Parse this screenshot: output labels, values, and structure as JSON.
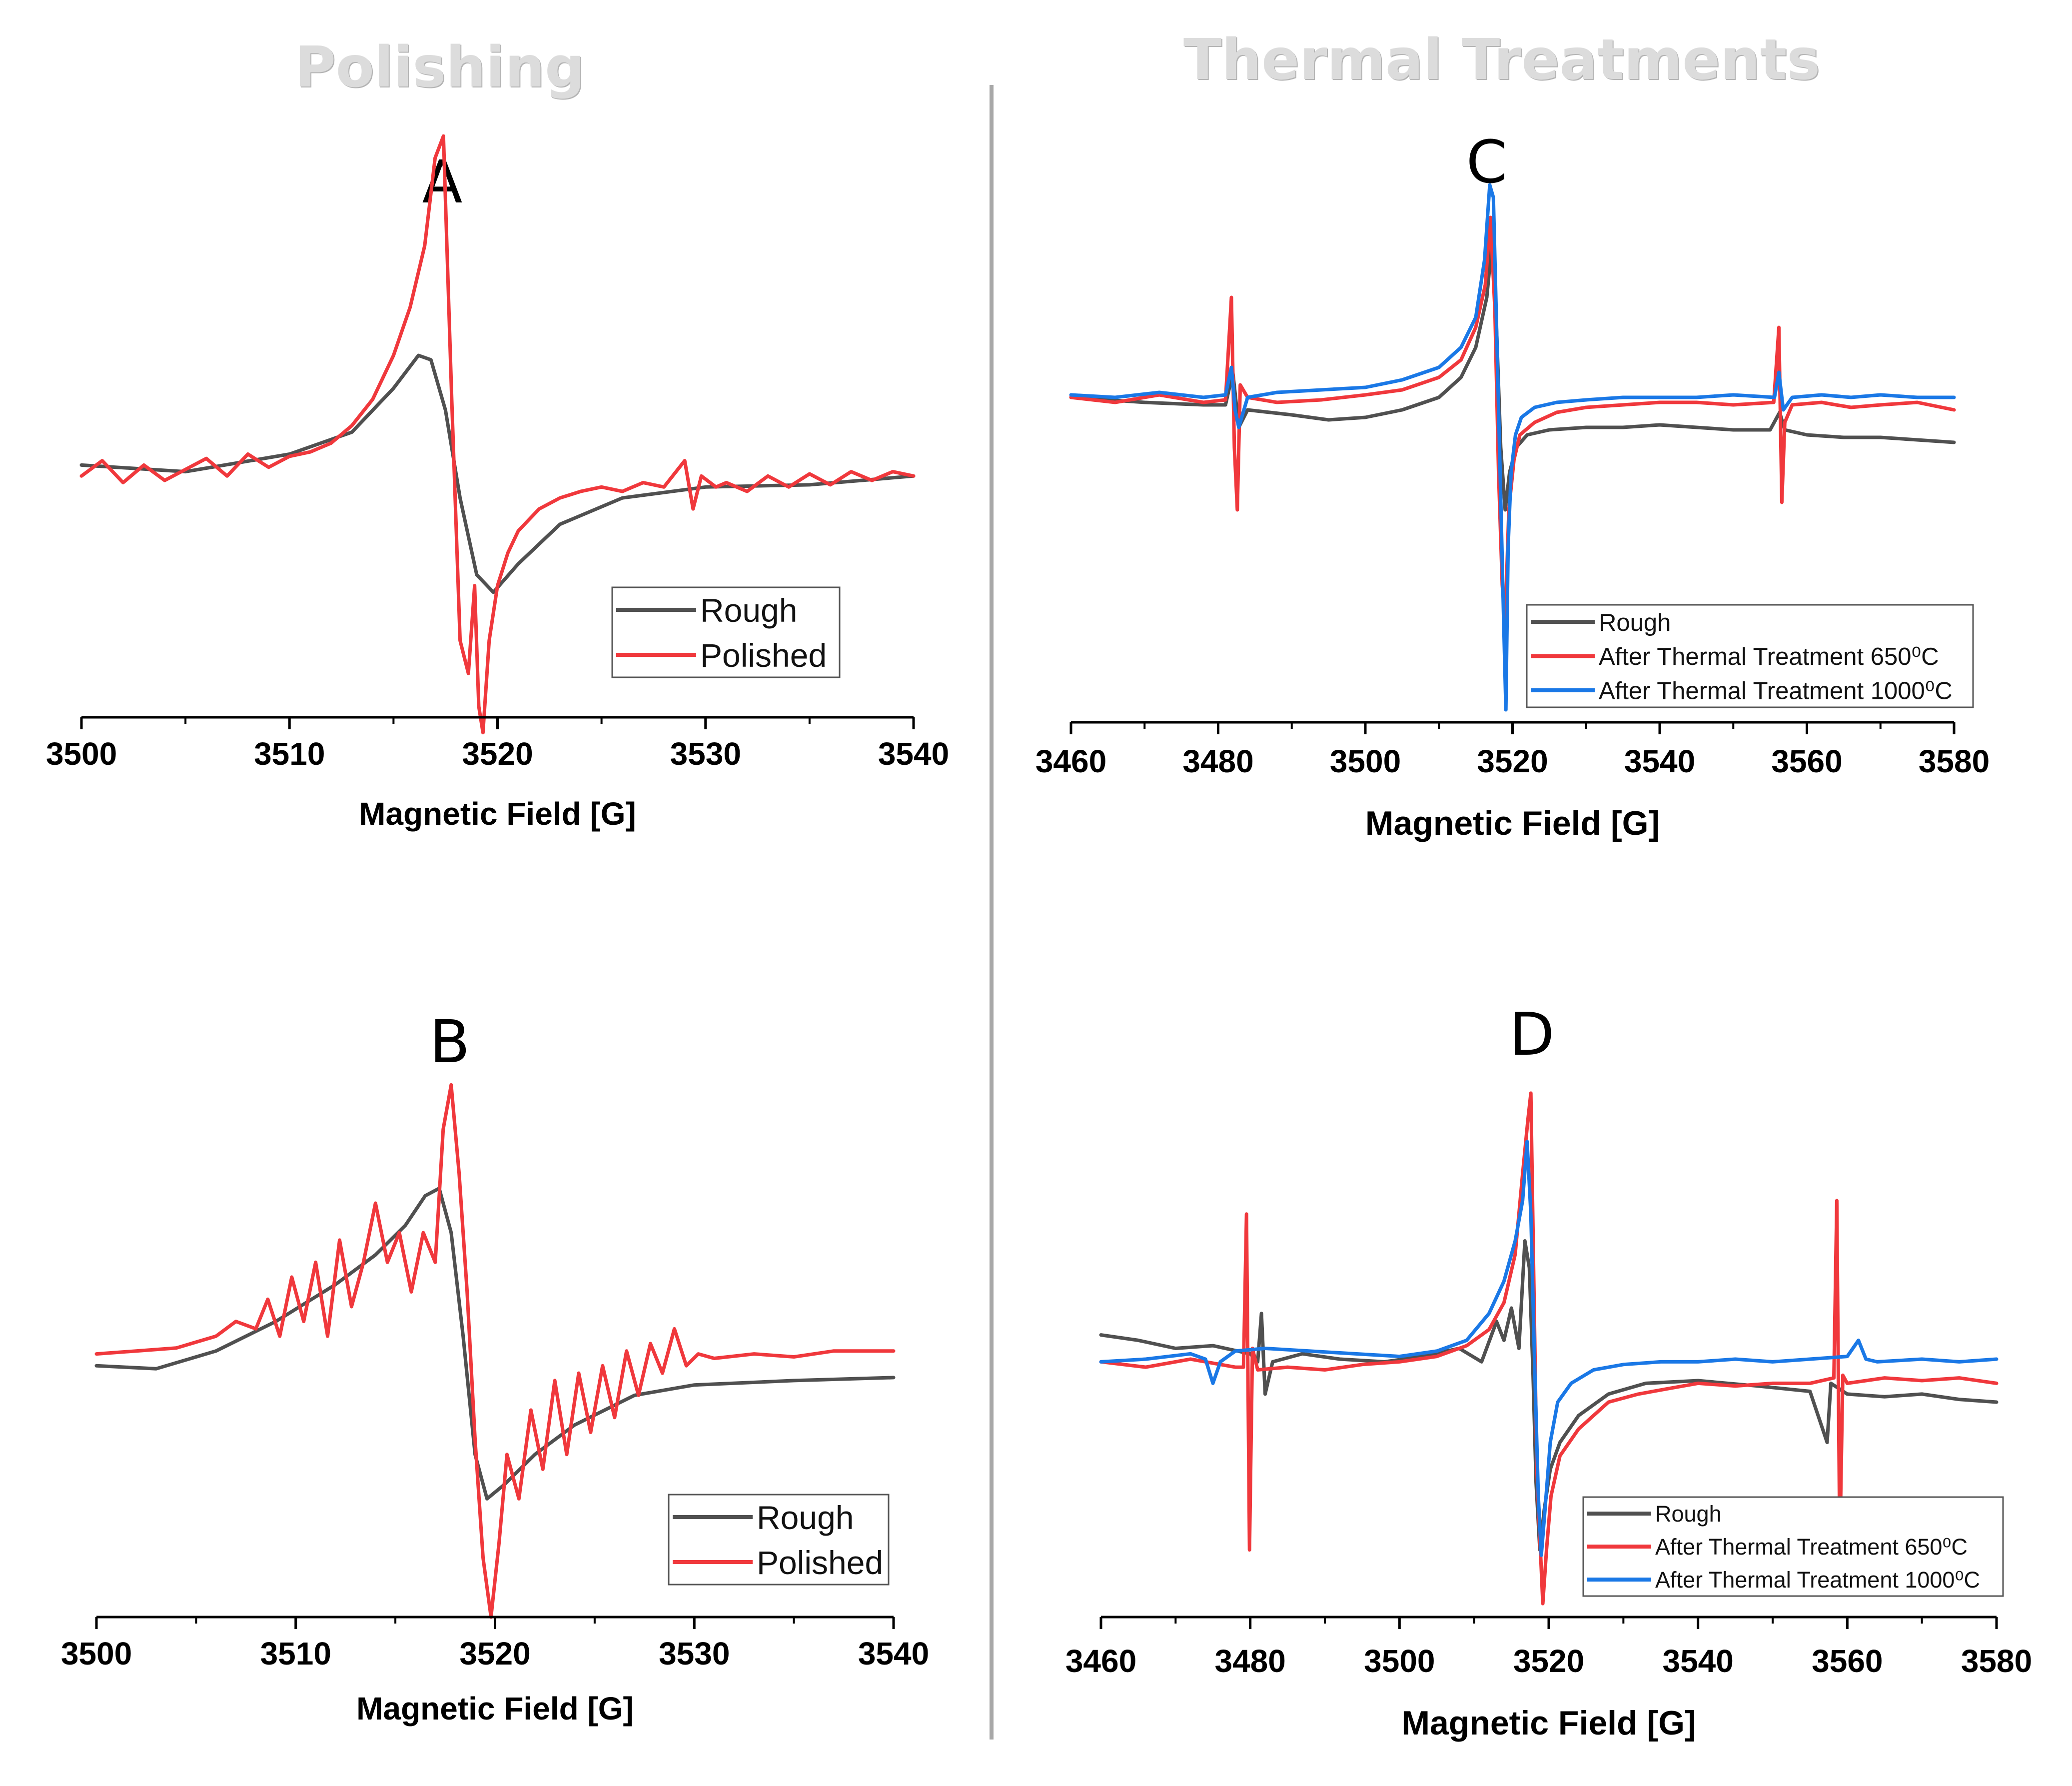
{
  "sections": {
    "left_title": "Polishing",
    "right_title": "Thermal Treatments"
  },
  "colors": {
    "rough": "#505050",
    "polished": "#f0383c",
    "t650": "#f0383c",
    "t1000": "#1a78e6"
  },
  "chart_data": [
    {
      "panel": "A",
      "type": "line",
      "title": "A",
      "xlabel": "Magnetic Field [G]",
      "ylabel": "",
      "xlim": [
        3500,
        3540
      ],
      "ylim": [
        -1.15,
        1.3
      ],
      "xticks": [
        3500,
        3510,
        3520,
        3530,
        3540
      ],
      "legend_position": "bottom-right",
      "series": [
        {
          "name": "Rough",
          "color": "#505050",
          "x": [
            3500,
            3505,
            3510,
            3513,
            3515,
            3516.2,
            3516.8,
            3517.5,
            3518.2,
            3519.0,
            3519.8,
            3521,
            3523,
            3526,
            3530,
            3535,
            3540
          ],
          "y": [
            0.0,
            -0.03,
            0.05,
            0.15,
            0.35,
            0.5,
            0.48,
            0.25,
            -0.15,
            -0.5,
            -0.58,
            -0.45,
            -0.27,
            -0.15,
            -0.1,
            -0.09,
            -0.05
          ]
        },
        {
          "name": "Polished",
          "color": "#f0383c",
          "x": [
            3500,
            3501,
            3502,
            3503,
            3504,
            3505,
            3506,
            3507,
            3508,
            3509,
            3510,
            3511,
            3512,
            3513,
            3514,
            3515,
            3515.8,
            3516.5,
            3517.0,
            3517.4,
            3517.8,
            3518.2,
            3518.6,
            3518.9,
            3519.1,
            3519.3,
            3519.6,
            3520.0,
            3520.5,
            3521,
            3522,
            3523,
            3524,
            3525,
            3526,
            3527,
            3528,
            3529,
            3529.4,
            3529.8,
            3530.5,
            3531,
            3532,
            3533,
            3534,
            3535,
            3536,
            3537,
            3538,
            3539,
            3540
          ],
          "y": [
            -0.05,
            0.02,
            -0.08,
            0.0,
            -0.07,
            -0.02,
            0.03,
            -0.05,
            0.05,
            -0.01,
            0.04,
            0.06,
            0.1,
            0.18,
            0.3,
            0.5,
            0.72,
            1.0,
            1.4,
            1.5,
            0.3,
            -0.8,
            -0.95,
            -0.55,
            -1.1,
            -1.22,
            -0.8,
            -0.55,
            -0.4,
            -0.3,
            -0.2,
            -0.15,
            -0.12,
            -0.1,
            -0.12,
            -0.08,
            -0.1,
            0.02,
            -0.2,
            -0.05,
            -0.1,
            -0.08,
            -0.12,
            -0.05,
            -0.1,
            -0.04,
            -0.09,
            -0.03,
            -0.07,
            -0.03,
            -0.05
          ]
        }
      ]
    },
    {
      "panel": "B",
      "type": "line",
      "title": "B",
      "xlabel": "Magnetic Field [G]",
      "ylabel": "",
      "xlim": [
        3500,
        3540
      ],
      "ylim": [
        -1.7,
        1.8
      ],
      "xticks": [
        3500,
        3510,
        3520,
        3530,
        3540
      ],
      "legend_position": "bottom-right",
      "series": [
        {
          "name": "Rough",
          "color": "#505050",
          "x": [
            3500,
            3503,
            3506,
            3509,
            3512,
            3514,
            3515.5,
            3516.5,
            3517.2,
            3517.8,
            3518.4,
            3519.0,
            3519.6,
            3520.5,
            3522,
            3524,
            3527,
            3530,
            3535,
            3540
          ],
          "y": [
            0.0,
            -0.02,
            0.1,
            0.3,
            0.55,
            0.75,
            0.95,
            1.15,
            1.2,
            0.9,
            0.2,
            -0.6,
            -0.9,
            -0.8,
            -0.6,
            -0.4,
            -0.2,
            -0.13,
            -0.1,
            -0.08
          ]
        },
        {
          "name": "Polished",
          "color": "#f0383c",
          "x": [
            3500,
            3502,
            3504,
            3506,
            3507,
            3508,
            3508.6,
            3509.2,
            3509.8,
            3510.4,
            3511,
            3511.6,
            3512.2,
            3512.8,
            3513.4,
            3514,
            3514.6,
            3515.2,
            3515.8,
            3516.4,
            3517.0,
            3517.4,
            3517.8,
            3518.2,
            3518.6,
            3519.0,
            3519.4,
            3519.8,
            3520.2,
            3520.6,
            3521.2,
            3521.8,
            3522.4,
            3523,
            3523.6,
            3524.2,
            3524.8,
            3525.4,
            3526,
            3526.6,
            3527.2,
            3527.8,
            3528.4,
            3529.0,
            3529.6,
            3530.2,
            3531,
            3533,
            3535,
            3537,
            3540
          ],
          "y": [
            0.08,
            0.1,
            0.12,
            0.2,
            0.3,
            0.25,
            0.45,
            0.2,
            0.6,
            0.3,
            0.7,
            0.2,
            0.85,
            0.4,
            0.7,
            1.1,
            0.7,
            0.9,
            0.5,
            0.9,
            0.7,
            1.6,
            1.9,
            1.3,
            0.5,
            -0.5,
            -1.3,
            -1.7,
            -1.2,
            -0.6,
            -0.9,
            -0.3,
            -0.7,
            -0.1,
            -0.6,
            -0.05,
            -0.45,
            0.0,
            -0.35,
            0.1,
            -0.2,
            0.15,
            -0.05,
            0.25,
            0.0,
            0.08,
            0.05,
            0.08,
            0.06,
            0.1,
            0.1
          ]
        }
      ]
    },
    {
      "panel": "C",
      "type": "line",
      "title": "C",
      "xlabel": "Magnetic Field [G]",
      "ylabel": "",
      "xlim": [
        3460,
        3580
      ],
      "ylim": [
        -1.3,
        0.85
      ],
      "xticks": [
        3460,
        3480,
        3500,
        3520,
        3540,
        3560,
        3580
      ],
      "legend_position": "bottom-center",
      "series": [
        {
          "name": "Rough",
          "color": "#505050",
          "x": [
            3460,
            3470,
            3478,
            3481,
            3482,
            3482.8,
            3484,
            3490,
            3495,
            3500,
            3505,
            3510,
            3513,
            3515,
            3516.5,
            3517.2,
            3517.8,
            3518.4,
            3519.0,
            3519.6,
            3520.5,
            3522,
            3525,
            3530,
            3535,
            3540,
            3545,
            3550,
            3555,
            3556.3,
            3557,
            3560,
            3565,
            3570,
            3575,
            3580
          ],
          "y": [
            0.0,
            -0.02,
            -0.03,
            -0.03,
            0.1,
            -0.12,
            -0.05,
            -0.07,
            -0.09,
            -0.08,
            -0.05,
            0.0,
            0.08,
            0.2,
            0.4,
            0.62,
            0.3,
            -0.2,
            -0.45,
            -0.3,
            -0.2,
            -0.15,
            -0.13,
            -0.12,
            -0.12,
            -0.11,
            -0.12,
            -0.13,
            -0.13,
            -0.06,
            -0.13,
            -0.15,
            -0.16,
            -0.16,
            -0.17,
            -0.18
          ]
        },
        {
          "name": "After Thermal Treatment 650⁰C",
          "color": "#f0383c",
          "x": [
            3460,
            3466,
            3472,
            3478,
            3481,
            3481.8,
            3482.2,
            3482.6,
            3483.0,
            3484,
            3488,
            3494,
            3500,
            3505,
            3510,
            3513,
            3515,
            3516.3,
            3517.0,
            3517.6,
            3518.1,
            3518.6,
            3519.0,
            3519.5,
            3520.2,
            3521,
            3523,
            3526,
            3530,
            3535,
            3540,
            3545,
            3550,
            3555.5,
            3556.2,
            3556.6,
            3557.0,
            3558,
            3562,
            3566,
            3570,
            3575,
            3580
          ],
          "y": [
            0.0,
            -0.02,
            0.01,
            -0.02,
            -0.01,
            0.4,
            -0.2,
            -0.45,
            0.05,
            0.0,
            -0.02,
            -0.01,
            0.01,
            0.03,
            0.08,
            0.15,
            0.28,
            0.45,
            0.72,
            0.35,
            -0.3,
            -0.75,
            -0.9,
            -0.45,
            -0.25,
            -0.15,
            -0.1,
            -0.06,
            -0.04,
            -0.03,
            -0.02,
            -0.02,
            -0.03,
            -0.02,
            0.28,
            -0.42,
            -0.1,
            -0.03,
            -0.02,
            -0.04,
            -0.03,
            -0.02,
            -0.05
          ]
        },
        {
          "name": "After Thermal Treatment 1000⁰C",
          "color": "#1a78e6",
          "x": [
            3460,
            3466,
            3472,
            3478,
            3481,
            3481.8,
            3482.3,
            3482.8,
            3484,
            3488,
            3494,
            3500,
            3505,
            3510,
            3513,
            3515,
            3516.2,
            3516.9,
            3517.4,
            3517.9,
            3518.4,
            3518.8,
            3519.1,
            3519.4,
            3519.8,
            3520.4,
            3521.2,
            3523,
            3526,
            3530,
            3535,
            3540,
            3545,
            3550,
            3555.6,
            3556.2,
            3556.8,
            3558,
            3562,
            3566,
            3570,
            3575,
            3580
          ],
          "y": [
            0.01,
            0.0,
            0.02,
            0.0,
            0.01,
            0.12,
            -0.05,
            -0.12,
            0.0,
            0.02,
            0.03,
            0.04,
            0.07,
            0.12,
            0.2,
            0.32,
            0.55,
            0.85,
            0.8,
            0.2,
            -0.4,
            -0.9,
            -1.25,
            -0.6,
            -0.3,
            -0.15,
            -0.08,
            -0.04,
            -0.02,
            -0.01,
            0.0,
            0.0,
            0.0,
            0.01,
            0.0,
            0.1,
            -0.05,
            0.0,
            0.01,
            0.0,
            0.01,
            0.0,
            0.0
          ]
        }
      ]
    },
    {
      "panel": "D",
      "type": "line",
      "title": "D",
      "xlabel": "Magnetic Field [G]",
      "ylabel": "",
      "xlim": [
        3460,
        3580
      ],
      "ylim": [
        -0.95,
        1.05
      ],
      "xticks": [
        3460,
        3480,
        3500,
        3520,
        3540,
        3560,
        3580
      ],
      "legend_position": "bottom-right",
      "series": [
        {
          "name": "Rough",
          "color": "#505050",
          "x": [
            3460,
            3465,
            3470,
            3475,
            3480,
            3481,
            3481.5,
            3482,
            3483,
            3487,
            3492,
            3498,
            3503,
            3508,
            3511,
            3513,
            3514,
            3515,
            3516,
            3516.8,
            3517.4,
            3517.9,
            3518.3,
            3518.8,
            3519.4,
            3520.2,
            3521.5,
            3524,
            3528,
            3533,
            3540,
            3548,
            3555,
            3557.3,
            3557.8,
            3560,
            3565,
            3570,
            3575,
            3580
          ],
          "y": [
            0.1,
            0.08,
            0.05,
            0.06,
            0.03,
            0.0,
            0.18,
            -0.12,
            0.0,
            0.03,
            0.01,
            0.0,
            0.02,
            0.05,
            0.0,
            0.15,
            0.08,
            0.2,
            0.05,
            0.45,
            0.35,
            -0.05,
            -0.45,
            -0.7,
            -0.55,
            -0.4,
            -0.3,
            -0.2,
            -0.12,
            -0.08,
            -0.07,
            -0.09,
            -0.11,
            -0.3,
            -0.08,
            -0.12,
            -0.13,
            -0.12,
            -0.14,
            -0.15
          ]
        },
        {
          "name": "After Thermal Treatment 650⁰C",
          "color": "#f0383c",
          "x": [
            3460,
            3466,
            3472,
            3478,
            3479.1,
            3479.5,
            3479.9,
            3480.3,
            3481,
            3485,
            3490,
            3495,
            3500,
            3505,
            3509,
            3512,
            3514,
            3515.5,
            3516.5,
            3517.2,
            3517.6,
            3518.0,
            3518.4,
            3518.8,
            3519.2,
            3519.7,
            3520.3,
            3521.5,
            3524,
            3528,
            3532,
            3536,
            3540,
            3545,
            3550,
            3555,
            3558.2,
            3558.6,
            3559.0,
            3559.4,
            3560,
            3565,
            3570,
            3575,
            3580
          ],
          "y": [
            0.0,
            -0.02,
            0.01,
            -0.02,
            -0.02,
            0.55,
            -0.7,
            0.05,
            -0.03,
            -0.02,
            -0.03,
            -0.01,
            0.0,
            0.02,
            0.06,
            0.12,
            0.22,
            0.4,
            0.7,
            0.9,
            1.0,
            0.3,
            -0.4,
            -0.65,
            -0.9,
            -0.7,
            -0.5,
            -0.35,
            -0.25,
            -0.15,
            -0.12,
            -0.1,
            -0.08,
            -0.09,
            -0.08,
            -0.08,
            -0.06,
            0.6,
            -0.7,
            -0.05,
            -0.08,
            -0.06,
            -0.07,
            -0.06,
            -0.08
          ]
        },
        {
          "name": "After Thermal Treatment 1000⁰C",
          "color": "#1a78e6",
          "x": [
            3460,
            3466,
            3472,
            3474,
            3475,
            3476,
            3478,
            3482,
            3488,
            3494,
            3500,
            3505,
            3509,
            3512,
            3514,
            3515.5,
            3516.5,
            3517.1,
            3517.6,
            3518.1,
            3518.6,
            3519.0,
            3519.5,
            3520.2,
            3521.2,
            3523,
            3526,
            3530,
            3535,
            3540,
            3545,
            3550,
            3555,
            3560,
            3561.5,
            3562.5,
            3564,
            3570,
            3575,
            3580
          ],
          "y": [
            0.0,
            0.01,
            0.03,
            0.01,
            -0.08,
            0.0,
            0.04,
            0.05,
            0.04,
            0.03,
            0.02,
            0.04,
            0.08,
            0.18,
            0.3,
            0.45,
            0.6,
            0.82,
            0.55,
            0.0,
            -0.5,
            -0.72,
            -0.55,
            -0.3,
            -0.15,
            -0.08,
            -0.03,
            -0.01,
            0.0,
            0.0,
            0.01,
            0.0,
            0.01,
            0.02,
            0.08,
            0.01,
            0.0,
            0.01,
            0.0,
            0.01
          ]
        }
      ]
    }
  ]
}
